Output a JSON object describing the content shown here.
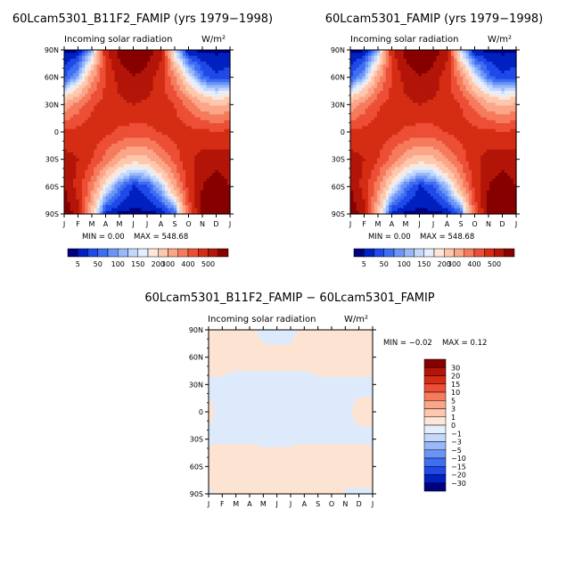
{
  "colors": {
    "blue_scale": [
      "#00007f",
      "#0020c0",
      "#1f49e8",
      "#3f6ef2",
      "#6b94f7",
      "#98b8fa",
      "#c4d8fc",
      "#e3eefe"
    ],
    "red_scale": [
      "#fee6d8",
      "#fdc8ae",
      "#fba688",
      "#f67b5d",
      "#ec4f36",
      "#d52c14",
      "#b31508",
      "#860000"
    ],
    "diff_pos": "#fde4d2",
    "diff_neg": "#dceafb"
  },
  "chart_data": [
    {
      "type": "heatmap",
      "title": "60Lcam5301_B11F2_FAMIP (yrs 1979−1998)",
      "subtitle": "Incoming solar radiation",
      "units": "W/m²",
      "x_ticks": [
        "J",
        "F",
        "M",
        "A",
        "M",
        "J",
        "J",
        "A",
        "S",
        "O",
        "N",
        "D",
        "J"
      ],
      "y_ticks": [
        "90N",
        "60N",
        "30N",
        "0",
        "30S",
        "60S",
        "90S"
      ],
      "x": [
        "Jan",
        "Feb",
        "Mar",
        "Apr",
        "May",
        "Jun",
        "Jul",
        "Aug",
        "Sep",
        "Oct",
        "Nov",
        "Dec",
        "Jan"
      ],
      "y": [
        90,
        60,
        30,
        0,
        -30,
        -60,
        -90
      ],
      "values": [
        [
          0,
          0,
          100,
          440,
          520,
          545,
          530,
          470,
          140,
          0,
          0,
          0,
          0
        ],
        [
          40,
          110,
          280,
          400,
          470,
          500,
          480,
          420,
          310,
          160,
          60,
          30,
          40
        ],
        [
          260,
          320,
          390,
          420,
          440,
          450,
          440,
          430,
          400,
          330,
          270,
          240,
          260
        ],
        [
          410,
          420,
          430,
          415,
          390,
          380,
          385,
          405,
          425,
          420,
          410,
          405,
          410
        ],
        [
          470,
          450,
          400,
          330,
          260,
          220,
          235,
          300,
          370,
          440,
          470,
          480,
          470
        ],
        [
          500,
          430,
          320,
          170,
          70,
          20,
          40,
          120,
          270,
          420,
          500,
          530,
          500
        ],
        [
          545,
          470,
          230,
          10,
          0,
          0,
          0,
          0,
          50,
          360,
          520,
          545,
          545
        ]
      ],
      "min_label": "MIN = 0.00",
      "max_label": "MAX = 548.68",
      "colorbar_labels": [
        "5",
        "50",
        "100",
        "150",
        "200",
        "300",
        "400",
        "500"
      ],
      "levels": [
        5,
        25,
        50,
        75,
        100,
        125,
        150,
        175,
        200,
        250,
        300,
        350,
        400,
        450,
        500
      ]
    },
    {
      "type": "heatmap",
      "title": "60Lcam5301_FAMIP (yrs 1979−1998)",
      "subtitle": "Incoming solar radiation",
      "units": "W/m²",
      "x_ticks": [
        "J",
        "F",
        "M",
        "A",
        "M",
        "J",
        "J",
        "A",
        "S",
        "O",
        "N",
        "D",
        "J"
      ],
      "y_ticks": [
        "90N",
        "60N",
        "30N",
        "0",
        "30S",
        "60S",
        "90S"
      ],
      "x": [
        "Jan",
        "Feb",
        "Mar",
        "Apr",
        "May",
        "Jun",
        "Jul",
        "Aug",
        "Sep",
        "Oct",
        "Nov",
        "Dec",
        "Jan"
      ],
      "y": [
        90,
        60,
        30,
        0,
        -30,
        -60,
        -90
      ],
      "values": [
        [
          0,
          0,
          100,
          440,
          520,
          545,
          530,
          470,
          140,
          0,
          0,
          0,
          0
        ],
        [
          40,
          110,
          280,
          400,
          470,
          500,
          480,
          420,
          310,
          160,
          60,
          30,
          40
        ],
        [
          260,
          320,
          390,
          420,
          440,
          450,
          440,
          430,
          400,
          330,
          270,
          240,
          260
        ],
        [
          410,
          420,
          430,
          415,
          390,
          380,
          385,
          405,
          425,
          420,
          410,
          405,
          410
        ],
        [
          470,
          450,
          400,
          330,
          260,
          220,
          235,
          300,
          370,
          440,
          470,
          480,
          470
        ],
        [
          500,
          430,
          320,
          170,
          70,
          20,
          40,
          120,
          270,
          420,
          500,
          530,
          500
        ],
        [
          545,
          470,
          230,
          10,
          0,
          0,
          0,
          0,
          50,
          360,
          520,
          545,
          545
        ]
      ],
      "min_label": "MIN = 0.00",
      "max_label": "MAX = 548.68",
      "colorbar_labels": [
        "5",
        "50",
        "100",
        "150",
        "200",
        "300",
        "400",
        "500"
      ],
      "levels": [
        5,
        25,
        50,
        75,
        100,
        125,
        150,
        175,
        200,
        250,
        300,
        350,
        400,
        450,
        500
      ]
    },
    {
      "type": "heatmap",
      "title": "60Lcam5301_B11F2_FAMIP − 60Lcam5301_FAMIP",
      "subtitle": "Incoming solar radiation",
      "units": "W/m²",
      "x_ticks": [
        "J",
        "F",
        "M",
        "A",
        "M",
        "J",
        "J",
        "A",
        "S",
        "O",
        "N",
        "D",
        "J"
      ],
      "y_ticks": [
        "90N",
        "60N",
        "30N",
        "0",
        "30S",
        "60S",
        "90S"
      ],
      "x": [
        "Jan",
        "Feb",
        "Mar",
        "Apr",
        "May",
        "Jun",
        "Jul",
        "Aug",
        "Sep",
        "Oct",
        "Nov",
        "Dec",
        "Jan"
      ],
      "y": [
        90,
        60,
        30,
        0,
        -30,
        -60,
        -90
      ],
      "values": [
        [
          0.01,
          0.01,
          0.01,
          0.01,
          -0.01,
          -0.01,
          -0.01,
          0.01,
          0.01,
          0.01,
          0.01,
          0.01,
          0.01
        ],
        [
          0.02,
          0.02,
          0.01,
          0.01,
          0.01,
          0.01,
          0.01,
          0.01,
          0.02,
          0.02,
          0.02,
          0.02,
          0.02
        ],
        [
          -0.01,
          -0.01,
          -0.01,
          -0.01,
          -0.01,
          -0.01,
          -0.01,
          -0.01,
          -0.01,
          -0.01,
          -0.01,
          -0.01,
          -0.01
        ],
        [
          0.01,
          -0.01,
          -0.01,
          -0.01,
          -0.01,
          -0.01,
          -0.01,
          -0.01,
          -0.01,
          -0.01,
          -0.01,
          0.01,
          0.01
        ],
        [
          -0.01,
          -0.01,
          -0.01,
          -0.01,
          -0.01,
          -0.01,
          -0.01,
          -0.01,
          -0.01,
          -0.01,
          -0.01,
          -0.01,
          -0.01
        ],
        [
          0.03,
          0.05,
          0.05,
          0.04,
          0.03,
          0.03,
          0.03,
          0.04,
          0.05,
          0.06,
          0.05,
          0.04,
          0.03
        ],
        [
          -0.01,
          0.02,
          0.01,
          0.01,
          0.01,
          0.01,
          0.01,
          0.01,
          0.01,
          0.02,
          -0.01,
          -0.01,
          -0.01
        ]
      ],
      "min_label": "MIN = −0.02",
      "max_label": "MAX = 0.12",
      "colorbar_labels": [
        "30",
        "20",
        "15",
        "10",
        "5",
        "3",
        "1",
        "0",
        "−1",
        "−3",
        "−5",
        "−10",
        "−15",
        "−20",
        "−30"
      ]
    }
  ]
}
